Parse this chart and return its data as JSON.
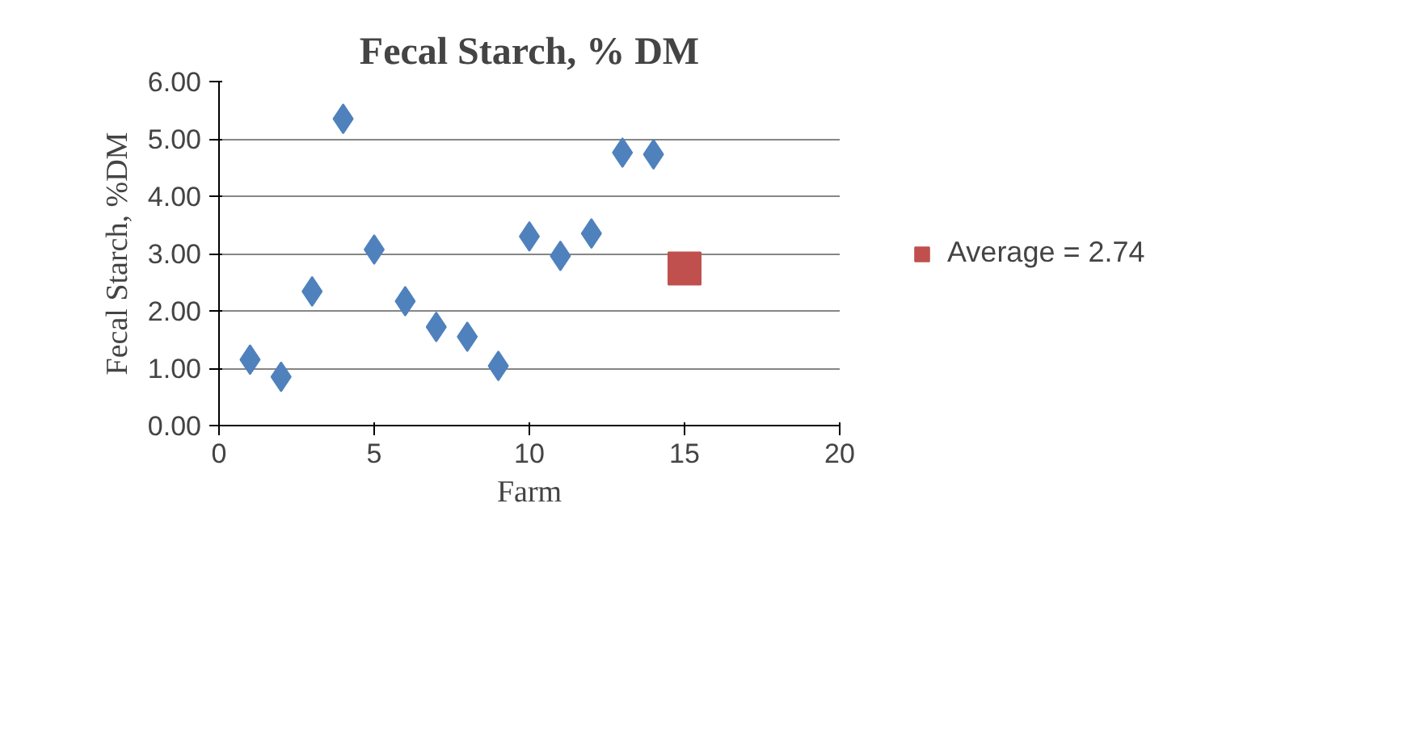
{
  "chart_data": {
    "type": "scatter",
    "title": "Fecal Starch, % DM",
    "xlabel": "Farm",
    "ylabel": "Fecal Starch, %DM",
    "series": [
      {
        "color": "#4f81bd",
        "marker": "diamond",
        "x": [
          1,
          2,
          3,
          4,
          5,
          6,
          7,
          8,
          9,
          10,
          11,
          12,
          13,
          14
        ],
        "values": [
          1.15,
          0.85,
          2.34,
          5.35,
          3.07,
          2.17,
          1.72,
          1.55,
          1.04,
          3.3,
          2.96,
          3.35,
          4.76,
          4.73
        ]
      },
      {
        "name": "Average = 2.74",
        "color": "#c0504d",
        "marker": "square",
        "x": [
          15
        ],
        "values": [
          2.74
        ]
      }
    ],
    "xlim": [
      0,
      20
    ],
    "xticks": [
      0,
      5,
      10,
      15,
      20
    ],
    "ylim": [
      0,
      6
    ],
    "yticks": [
      {
        "value": 0,
        "label": "0.00"
      },
      {
        "value": 1,
        "label": "1.00"
      },
      {
        "value": 2,
        "label": "2.00"
      },
      {
        "value": 3,
        "label": "3.00"
      },
      {
        "value": 4,
        "label": "4.00"
      },
      {
        "value": 5,
        "label": "5.00"
      },
      {
        "value": 6,
        "label": "6.00"
      }
    ],
    "grid": "y",
    "legend": "right"
  }
}
